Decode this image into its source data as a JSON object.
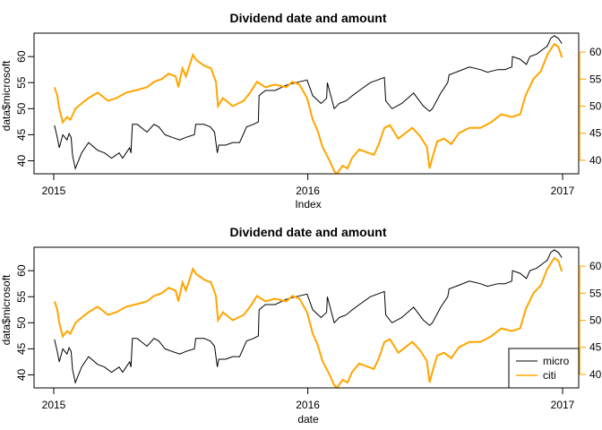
{
  "chart_data": [
    {
      "type": "line",
      "title": "Dividend date and amount",
      "xlabel": "Index",
      "ylabel": "data$microsoft",
      "x_ticks": [
        "2015",
        "2016",
        "2017"
      ],
      "x_range": [
        "2015-01-01",
        "2017-01-01"
      ],
      "ylim_left": [
        37.5,
        64.5
      ],
      "yticks_left": [
        40,
        45,
        50,
        55,
        60
      ],
      "ylim_right": [
        37.5,
        63.5
      ],
      "yticks_right": [
        40,
        45,
        50,
        55,
        60
      ],
      "legend": null,
      "series": [
        {
          "axis": "left",
          "color": "#000000",
          "points": [
            [
              "2015-01-02",
              46.8
            ],
            [
              "2015-01-06",
              44.5
            ],
            [
              "2015-01-09",
              42.5
            ],
            [
              "2015-01-14",
              45.0
            ],
            [
              "2015-01-20",
              44.0
            ],
            [
              "2015-01-23",
              45.2
            ],
            [
              "2015-01-26",
              44.5
            ],
            [
              "2015-01-28",
              41.0
            ],
            [
              "2015-02-01",
              38.5
            ],
            [
              "2015-02-10",
              41.5
            ],
            [
              "2015-02-20",
              43.5
            ],
            [
              "2015-03-05",
              42.0
            ],
            [
              "2015-03-15",
              41.5
            ],
            [
              "2015-03-25",
              40.5
            ],
            [
              "2015-04-05",
              41.5
            ],
            [
              "2015-04-10",
              40.5
            ],
            [
              "2015-04-15",
              41.5
            ],
            [
              "2015-04-20",
              42.5
            ],
            [
              "2015-04-22",
              41.5
            ],
            [
              "2015-04-24",
              47.0
            ],
            [
              "2015-05-01",
              47.0
            ],
            [
              "2015-05-15",
              45.5
            ],
            [
              "2015-05-25",
              47.0
            ],
            [
              "2015-06-01",
              46.5
            ],
            [
              "2015-06-10",
              45.0
            ],
            [
              "2015-06-20",
              44.5
            ],
            [
              "2015-07-01",
              44.0
            ],
            [
              "2015-07-10",
              44.5
            ],
            [
              "2015-07-22",
              45.0
            ],
            [
              "2015-07-24",
              47.0
            ],
            [
              "2015-08-05",
              47.0
            ],
            [
              "2015-08-14",
              46.5
            ],
            [
              "2015-08-20",
              45.5
            ],
            [
              "2015-08-24",
              41.5
            ],
            [
              "2015-08-26",
              43.0
            ],
            [
              "2015-09-05",
              43.0
            ],
            [
              "2015-09-15",
              43.5
            ],
            [
              "2015-09-25",
              43.5
            ],
            [
              "2015-10-05",
              46.5
            ],
            [
              "2015-10-15",
              47.0
            ],
            [
              "2015-10-22",
              47.5
            ],
            [
              "2015-10-23",
              52.5
            ],
            [
              "2015-11-01",
              53.5
            ],
            [
              "2015-11-15",
              53.5
            ],
            [
              "2015-12-01",
              54.5
            ],
            [
              "2015-12-15",
              55.0
            ],
            [
              "2015-12-31",
              55.5
            ],
            [
              "2016-01-08",
              52.5
            ],
            [
              "2016-01-20",
              51.0
            ],
            [
              "2016-01-28",
              52.0
            ],
            [
              "2016-01-29",
              55.0
            ],
            [
              "2016-02-08",
              50.0
            ],
            [
              "2016-02-15",
              51.0
            ],
            [
              "2016-02-25",
              51.5
            ],
            [
              "2016-03-05",
              52.5
            ],
            [
              "2016-03-15",
              53.5
            ],
            [
              "2016-03-31",
              55.0
            ],
            [
              "2016-04-10",
              55.5
            ],
            [
              "2016-04-20",
              56.0
            ],
            [
              "2016-04-22",
              51.5
            ],
            [
              "2016-05-01",
              50.0
            ],
            [
              "2016-05-15",
              51.0
            ],
            [
              "2016-06-01",
              53.0
            ],
            [
              "2016-06-15",
              50.5
            ],
            [
              "2016-06-24",
              49.5
            ],
            [
              "2016-06-28",
              50.0
            ],
            [
              "2016-07-10",
              53.0
            ],
            [
              "2016-07-20",
              55.0
            ],
            [
              "2016-07-22",
              56.5
            ],
            [
              "2016-08-01",
              57.0
            ],
            [
              "2016-08-20",
              58.0
            ],
            [
              "2016-09-05",
              57.5
            ],
            [
              "2016-09-15",
              57.0
            ],
            [
              "2016-09-30",
              57.5
            ],
            [
              "2016-10-10",
              57.5
            ],
            [
              "2016-10-20",
              58.0
            ],
            [
              "2016-10-21",
              60.0
            ],
            [
              "2016-11-01",
              59.5
            ],
            [
              "2016-11-10",
              58.5
            ],
            [
              "2016-11-15",
              60.0
            ],
            [
              "2016-11-25",
              60.5
            ],
            [
              "2016-12-05",
              61.5
            ],
            [
              "2016-12-10",
              62.0
            ],
            [
              "2016-12-15",
              63.5
            ],
            [
              "2016-12-20",
              64.0
            ],
            [
              "2016-12-26",
              63.5
            ],
            [
              "2016-12-31",
              62.5
            ]
          ]
        },
        {
          "axis": "right",
          "color": "#ffa500",
          "points": [
            [
              "2015-01-02",
              53.5
            ],
            [
              "2015-01-06",
              52.0
            ],
            [
              "2015-01-09",
              49.5
            ],
            [
              "2015-01-14",
              47.0
            ],
            [
              "2015-01-20",
              48.0
            ],
            [
              "2015-01-25",
              47.5
            ],
            [
              "2015-02-01",
              49.5
            ],
            [
              "2015-02-10",
              50.5
            ],
            [
              "2015-02-20",
              51.5
            ],
            [
              "2015-03-05",
              52.5
            ],
            [
              "2015-03-20",
              51.0
            ],
            [
              "2015-04-01",
              51.5
            ],
            [
              "2015-04-15",
              52.5
            ],
            [
              "2015-05-01",
              53.0
            ],
            [
              "2015-05-15",
              53.5
            ],
            [
              "2015-05-25",
              54.5
            ],
            [
              "2015-06-05",
              55.0
            ],
            [
              "2015-06-15",
              56.0
            ],
            [
              "2015-06-25",
              55.5
            ],
            [
              "2015-06-29",
              53.5
            ],
            [
              "2015-07-05",
              57.0
            ],
            [
              "2015-07-10",
              55.5
            ],
            [
              "2015-07-20",
              59.5
            ],
            [
              "2015-07-25",
              58.5
            ],
            [
              "2015-08-05",
              57.5
            ],
            [
              "2015-08-15",
              57.0
            ],
            [
              "2015-08-22",
              54.5
            ],
            [
              "2015-08-25",
              50.0
            ],
            [
              "2015-09-01",
              51.5
            ],
            [
              "2015-09-15",
              50.0
            ],
            [
              "2015-10-01",
              51.0
            ],
            [
              "2015-10-10",
              52.5
            ],
            [
              "2015-10-20",
              54.5
            ],
            [
              "2015-11-01",
              53.5
            ],
            [
              "2015-11-15",
              54.0
            ],
            [
              "2015-12-01",
              53.5
            ],
            [
              "2015-12-10",
              54.5
            ],
            [
              "2015-12-20",
              54.0
            ],
            [
              "2015-12-31",
              51.5
            ],
            [
              "2016-01-08",
              47.5
            ],
            [
              "2016-01-15",
              45.5
            ],
            [
              "2016-01-22",
              42.5
            ],
            [
              "2016-02-01",
              40.0
            ],
            [
              "2016-02-08",
              38.0
            ],
            [
              "2016-02-12",
              37.5
            ],
            [
              "2016-02-20",
              39.0
            ],
            [
              "2016-02-27",
              38.5
            ],
            [
              "2016-03-05",
              40.5
            ],
            [
              "2016-03-15",
              42.0
            ],
            [
              "2016-03-25",
              41.5
            ],
            [
              "2016-04-05",
              41.0
            ],
            [
              "2016-04-12",
              43.0
            ],
            [
              "2016-04-20",
              46.0
            ],
            [
              "2016-04-28",
              46.5
            ],
            [
              "2016-05-10",
              44.0
            ],
            [
              "2016-05-20",
              45.0
            ],
            [
              "2016-05-30",
              46.0
            ],
            [
              "2016-06-10",
              44.5
            ],
            [
              "2016-06-20",
              42.5
            ],
            [
              "2016-06-24",
              38.5
            ],
            [
              "2016-06-28",
              40.5
            ],
            [
              "2016-07-05",
              43.5
            ],
            [
              "2016-07-15",
              44.0
            ],
            [
              "2016-07-25",
              43.0
            ],
            [
              "2016-08-05",
              45.0
            ],
            [
              "2016-08-20",
              46.0
            ],
            [
              "2016-09-05",
              46.0
            ],
            [
              "2016-09-20",
              47.0
            ],
            [
              "2016-10-05",
              48.5
            ],
            [
              "2016-10-20",
              48.0
            ],
            [
              "2016-11-01",
              48.5
            ],
            [
              "2016-11-09",
              52.0
            ],
            [
              "2016-11-20",
              55.0
            ],
            [
              "2016-12-01",
              56.5
            ],
            [
              "2016-12-10",
              59.5
            ],
            [
              "2016-12-20",
              61.5
            ],
            [
              "2016-12-26",
              61.0
            ],
            [
              "2016-12-31",
              59.0
            ]
          ]
        }
      ]
    },
    {
      "type": "line",
      "title": "Dividend date and amount",
      "xlabel": "date",
      "ylabel": "data$microsoft",
      "x_ticks": [
        "2015",
        "2016",
        "2017"
      ],
      "x_range": [
        "2015-01-01",
        "2017-01-01"
      ],
      "ylim_left": [
        37.5,
        64.5
      ],
      "yticks_left": [
        40,
        45,
        50,
        55,
        60
      ],
      "ylim_right": [
        37.5,
        63.5
      ],
      "yticks_right": [
        40,
        45,
        50,
        55,
        60
      ],
      "legend": {
        "placement": "bottom-right",
        "entries": [
          {
            "label": "micro",
            "color": "#000000"
          },
          {
            "label": "citi",
            "color": "#ffa500"
          }
        ]
      },
      "series_ref": "same as first chart"
    }
  ]
}
